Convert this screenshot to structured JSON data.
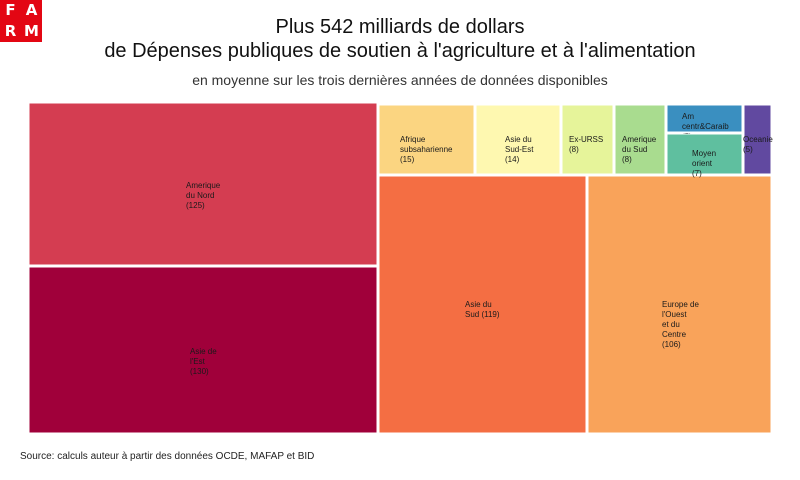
{
  "logo": {
    "letters": [
      "F",
      "A",
      "R",
      "M"
    ],
    "bg_color": "#e30613"
  },
  "title_line1": "Plus 542 milliards de dollars",
  "title_line2": "de Dépenses publiques de soutien à l'agriculture et à l'alimentation",
  "subtitle": "en moyenne sur les trois dernières années de données disponibles",
  "source": "Source: calculs auteur à partir des données OCDE, MAFAP et BID",
  "chart_data": {
    "type": "treemap",
    "title": "Plus 542 milliards de dollars de Dépenses publiques de soutien à l'agriculture et à l'alimentation",
    "unit": "milliards de dollars",
    "total": 542,
    "items": [
      {
        "id": "asie-est",
        "lines": [
          "Asie de",
          "l'Est",
          "(130)"
        ],
        "value": 130,
        "color": "#a0003a"
      },
      {
        "id": "amerique-nord",
        "lines": [
          "Amerique",
          "du Nord",
          "(125)"
        ],
        "value": 125,
        "color": "#d43d51"
      },
      {
        "id": "asie-sud",
        "lines": [
          "Asie du",
          "Sud (119)"
        ],
        "value": 119,
        "color": "#f46e43"
      },
      {
        "id": "europe",
        "lines": [
          "Europe de",
          "l'Ouest",
          "et du",
          "Centre",
          "(106)"
        ],
        "value": 106,
        "color": "#f9a35a"
      },
      {
        "id": "afrique",
        "lines": [
          "Afrique",
          "subsaharienne",
          "(15)"
        ],
        "value": 15,
        "color": "#fbd581"
      },
      {
        "id": "asie-sud-est",
        "lines": [
          "Asie du",
          "Sud-Est",
          "(14)"
        ],
        "value": 14,
        "color": "#fef8b0"
      },
      {
        "id": "ex-urss",
        "lines": [
          "Ex-URSS",
          "(8)"
        ],
        "value": 8,
        "color": "#e6f49a"
      },
      {
        "id": "amerique-sud",
        "lines": [
          "Amerique",
          "du Sud",
          "(8)"
        ],
        "value": 8,
        "color": "#a9dc8f"
      },
      {
        "id": "moyen-orient",
        "lines": [
          "Moyen",
          "orient",
          "(7)"
        ],
        "value": 7,
        "color": "#5fbf9f"
      },
      {
        "id": "am-centrale",
        "lines": [
          "Am",
          "centr&Caraib",
          "(5)"
        ],
        "value": 5,
        "color": "#3a8fc0"
      },
      {
        "id": "oceanie",
        "lines": [
          "Oceanie",
          "(5)"
        ],
        "value": 5,
        "color": "#6149a0"
      }
    ]
  }
}
